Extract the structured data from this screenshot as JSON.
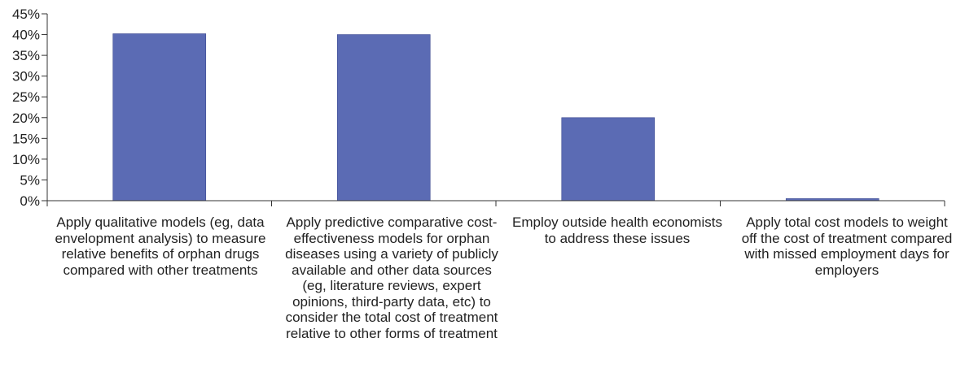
{
  "chart_data": {
    "type": "bar",
    "title": "",
    "xlabel": "",
    "ylabel": "",
    "ylim": [
      0,
      45
    ],
    "yticks": [
      "0%",
      "5%",
      "10%",
      "15%",
      "20%",
      "25%",
      "30%",
      "35%",
      "40%",
      "45%"
    ],
    "categories": [
      "Apply qualitative models (eg, data envelopment analysis) to measure relative benefits of orphan drugs compared with other treatments",
      "Apply predictive comparative cost-effectiveness models for orphan diseases using a variety of publicly available and other data sources (eg, literature reviews, expert opinions, third-party data, etc) to consider the total cost of treatment relative to other forms of treatment",
      "Employ outside health economists to address these issues",
      "Apply total cost models to weight off the cost of treatment compared with missed employment days for employers"
    ],
    "values": [
      40.2,
      40.0,
      20.0,
      0.5
    ],
    "bar_color": "#5b6bb4",
    "grid": false,
    "legend": "none"
  }
}
